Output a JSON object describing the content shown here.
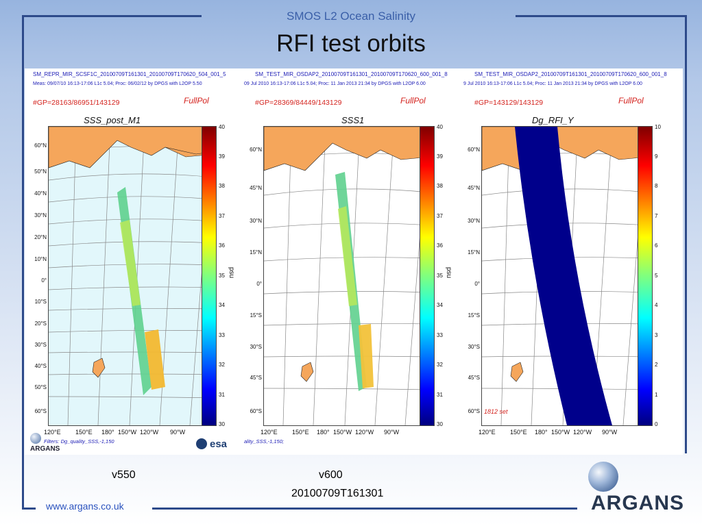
{
  "header": {
    "subtitle": "SMOS L2 Ocean Salinity",
    "title": "RFI test orbits"
  },
  "maps": [
    {
      "file": "SM_REPR_MIR_SCSF1C_20100709T161301_20100709T170620_504_001_5",
      "meta": "Meas: 09/07/10 16:13-17:06 L1c 5.04; Proc: 06/02/12 by DPGS with L2OP 5.50",
      "gp": "#GP=28163/86951/143129",
      "pol": "FullPol",
      "plot_title": "SSS_post_M1",
      "lat_labels": [
        "60°N",
        "50°N",
        "40°N",
        "30°N",
        "20°N",
        "10°N",
        "0°",
        "10°S",
        "20°S",
        "30°S",
        "40°S",
        "50°S",
        "60°S"
      ],
      "lon_labels": [
        "120°E",
        "150°E",
        "180°",
        "150°W",
        "120°W",
        "90°W"
      ],
      "cbar_ticks": [
        "40",
        "39",
        "38",
        "37",
        "36",
        "35",
        "34",
        "33",
        "32",
        "31",
        "30"
      ],
      "cbar_unit": "psu",
      "filter": "Filters: Dg_quality_SSS,-1,150"
    },
    {
      "file": "SM_TEST_MIR_OSDAP2_20100709T161301_20100709T170620_600_001_8",
      "meta": "09 Jul 2010 16:13-17:06 L1c 5.04; Proc: 11 Jan 2013 21:34 by DPGS with L2OP 6.00",
      "gp": "#GP=28369/84449/143129",
      "pol": "FullPol",
      "plot_title": "SSS1",
      "lat_labels": [
        "60°N",
        "45°N",
        "30°N",
        "15°N",
        "0°",
        "15°S",
        "30°S",
        "45°S",
        "60°S"
      ],
      "lon_labels": [
        "120°E",
        "150°E",
        "180°",
        "150°W",
        "120°W",
        "90°W"
      ],
      "cbar_ticks": [
        "40",
        "39",
        "38",
        "37",
        "36",
        "35",
        "34",
        "33",
        "32",
        "31",
        "30"
      ],
      "cbar_unit": "psu",
      "filter": "ality_SSS,-1,150;"
    },
    {
      "file": "SM_TEST_MIR_OSDAP2_20100709T161301_20100709T170620_600_001_8",
      "meta": "9 Jul 2010 16:13-17:06 L1c 5.04; Proc: 11 Jan 2013 21:34 by DPGS with L2OP 6.00",
      "gp": "#GP=143129/143129",
      "pol": "FullPol",
      "plot_title": "Dg_RFI_Y",
      "lat_labels": [
        "60°N",
        "45°N",
        "30°N",
        "15°N",
        "0°",
        "15°S",
        "30°S",
        "45°S",
        "60°S"
      ],
      "lon_labels": [
        "120°E",
        "150°E",
        "180°",
        "150°W",
        "120°W",
        "90°W"
      ],
      "cbar_ticks": [
        "10",
        "9",
        "8",
        "7",
        "6",
        "5",
        "4",
        "3",
        "2",
        "1",
        "0"
      ],
      "note": "1812 set"
    }
  ],
  "logos": {
    "argans_small": "ARGANS",
    "esa": "esa",
    "argans_big": "ARGANS"
  },
  "labels": {
    "v550": "v550",
    "v600": "v600",
    "date": "20100709T161301"
  },
  "footer": {
    "url": "www.argans.co.uk"
  }
}
